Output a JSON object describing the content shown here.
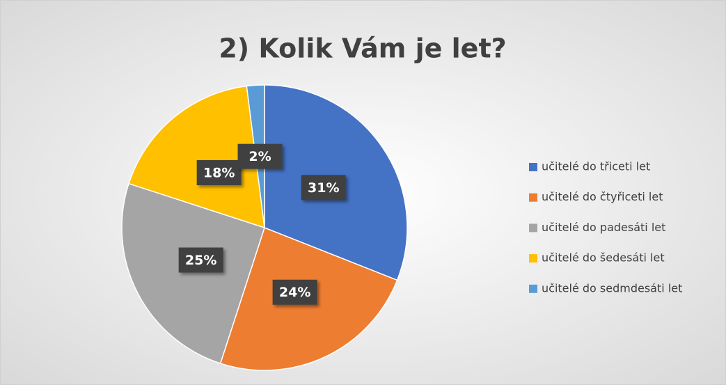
{
  "chart_data": {
    "type": "pie",
    "title": "2) Kolik Vám je let?",
    "categories": [
      "učitelé do třiceti let",
      "učitelé do čtyřiceti let",
      "učitelé do padesáti let",
      "učitelé do šedesáti let",
      "učitelé do sedmdesáti let"
    ],
    "values": [
      31,
      24,
      25,
      18,
      2
    ],
    "value_labels": [
      "31%",
      "24%",
      "25%",
      "18%",
      "2%"
    ],
    "colors": [
      "#4472c4",
      "#ed7d31",
      "#a5a5a5",
      "#ffc000",
      "#5b9bd5"
    ],
    "legend": "right"
  }
}
